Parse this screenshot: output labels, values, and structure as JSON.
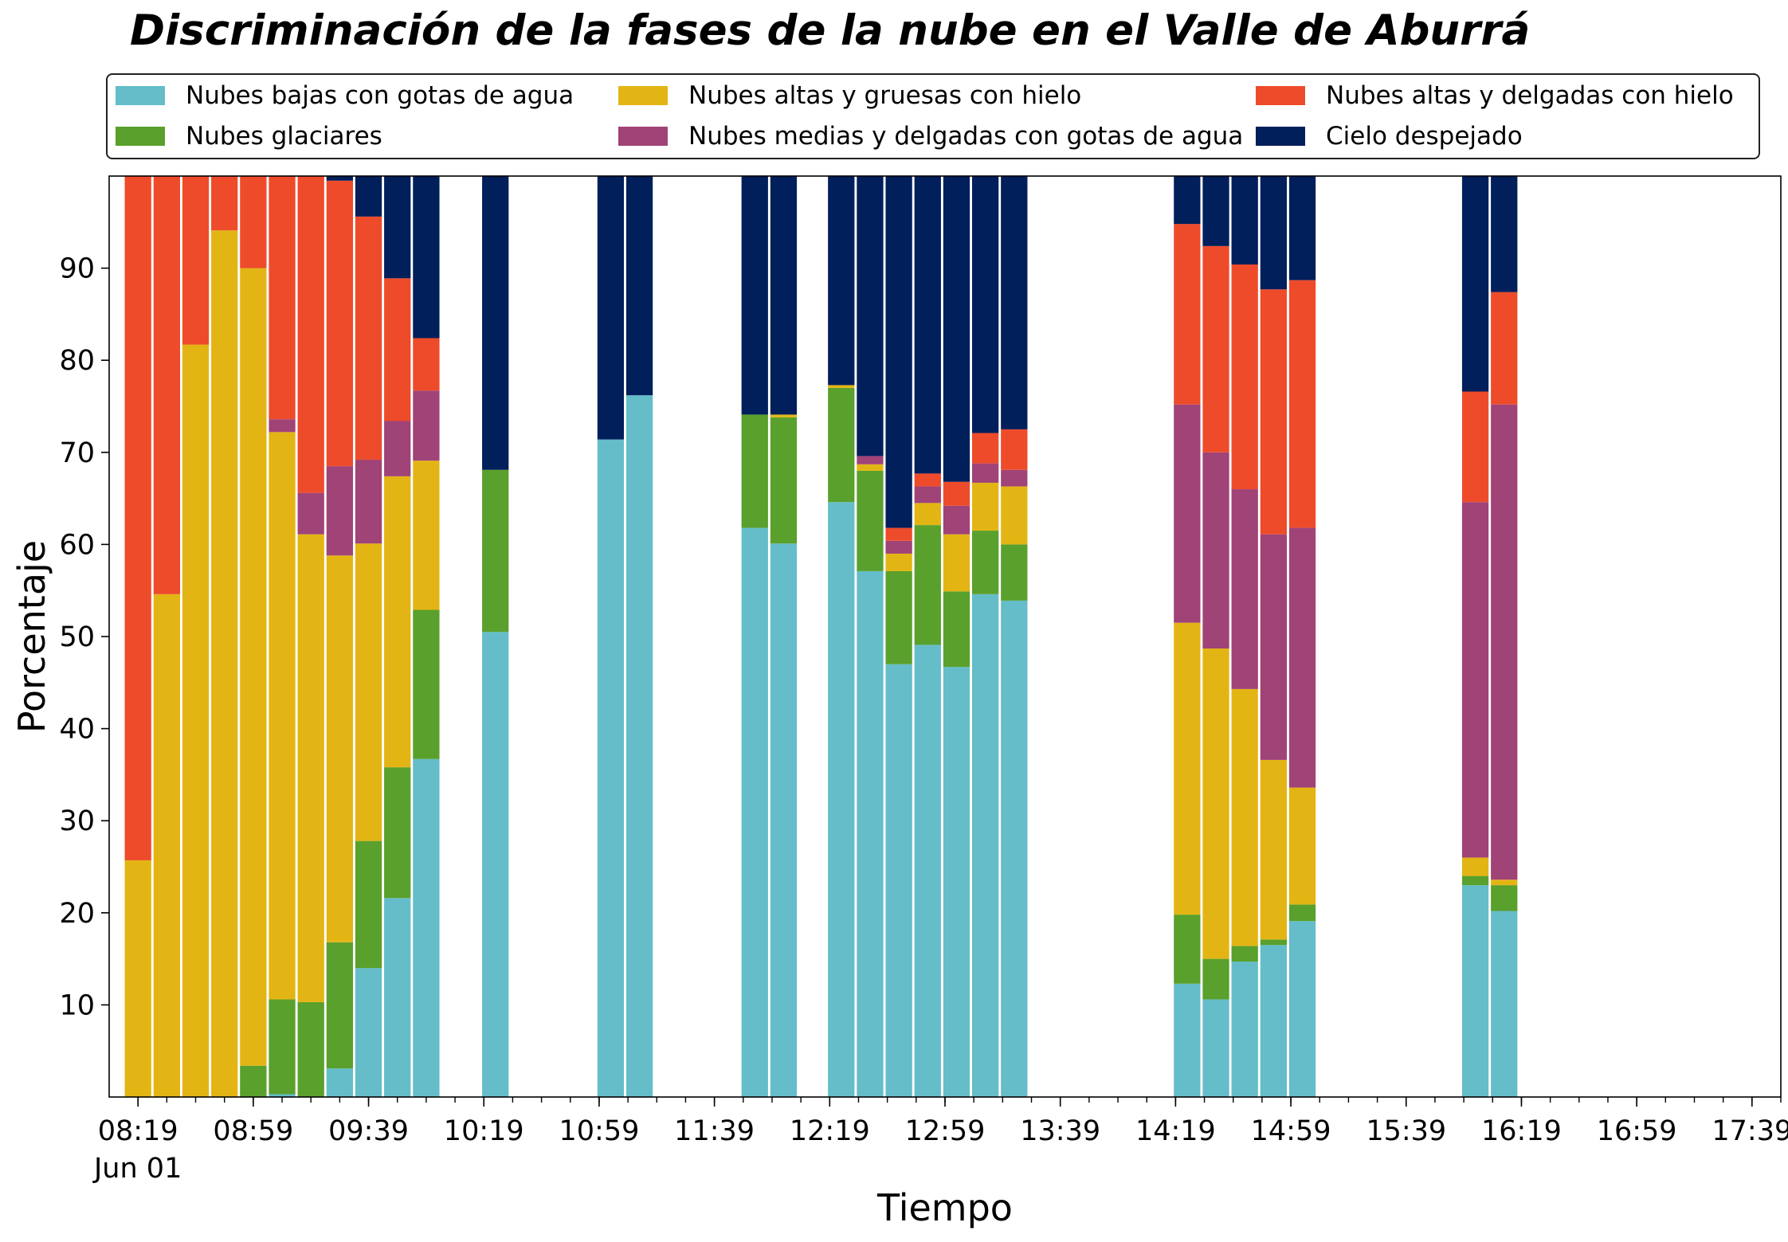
{
  "chart_data": {
    "type": "bar",
    "stacked": true,
    "title": "Discriminación de la fases de la nube en el Valle de Aburrá",
    "xlabel": "Tiempo",
    "ylabel": "Porcentaje",
    "ylim": [
      0,
      100
    ],
    "yticks": [
      10,
      20,
      30,
      40,
      50,
      60,
      70,
      80,
      90
    ],
    "xtick_labels": [
      "08:19",
      "08:59",
      "09:39",
      "10:19",
      "10:59",
      "11:39",
      "12:19",
      "12:59",
      "13:39",
      "14:19",
      "14:59",
      "15:39",
      "16:19",
      "16:59",
      "17:39"
    ],
    "xtick_date_label": "Jun 01",
    "x_start": "08:09",
    "x_end": "17:49",
    "legend_position": "top",
    "series": [
      {
        "name": "Nubes bajas con gotas de agua",
        "color": "#64BDC9"
      },
      {
        "name": "Nubes glaciares",
        "color": "#5AA02C"
      },
      {
        "name": "Nubes altas y gruesas con hielo",
        "color": "#E3B514"
      },
      {
        "name": "Nubes medias y delgadas con gotas de agua",
        "color": "#A04377"
      },
      {
        "name": "Nubes altas y delgadas con hielo",
        "color": "#EE4B2B"
      },
      {
        "name": "Cielo despejado",
        "color": "#001F5B"
      }
    ],
    "bars": [
      {
        "time": "08:19",
        "values": [
          0,
          0,
          25.7,
          0,
          74.3,
          0
        ]
      },
      {
        "time": "08:29",
        "values": [
          0,
          0,
          54.6,
          0,
          45.4,
          0
        ]
      },
      {
        "time": "08:39",
        "values": [
          0,
          0,
          81.7,
          0,
          18.3,
          0
        ]
      },
      {
        "time": "08:49",
        "values": [
          0,
          0,
          94.1,
          0,
          5.9,
          0
        ]
      },
      {
        "time": "08:59",
        "values": [
          0,
          3.4,
          86.6,
          0,
          10.0,
          0
        ]
      },
      {
        "time": "09:09",
        "values": [
          0.3,
          10.3,
          61.6,
          1.4,
          26.4,
          0
        ]
      },
      {
        "time": "09:19",
        "values": [
          0,
          10.3,
          50.8,
          4.5,
          34.4,
          0
        ]
      },
      {
        "time": "09:29",
        "values": [
          3.1,
          13.7,
          42.0,
          9.7,
          31.0,
          0.5
        ]
      },
      {
        "time": "09:39",
        "values": [
          14.0,
          13.8,
          32.3,
          9.1,
          26.4,
          4.4
        ]
      },
      {
        "time": "09:49",
        "values": [
          21.6,
          14.2,
          31.6,
          6.0,
          15.5,
          11.1
        ]
      },
      {
        "time": "09:59",
        "values": [
          36.7,
          16.2,
          16.2,
          7.6,
          5.7,
          17.6
        ]
      },
      {
        "time": "10:23",
        "values": [
          50.5,
          17.6,
          0,
          0,
          0,
          31.9
        ]
      },
      {
        "time": "11:03",
        "values": [
          71.4,
          0,
          0,
          0,
          0,
          28.6
        ]
      },
      {
        "time": "11:13",
        "values": [
          76.2,
          0,
          0,
          0,
          0,
          23.8
        ]
      },
      {
        "time": "11:53",
        "values": [
          61.8,
          12.3,
          0,
          0,
          0,
          25.9
        ]
      },
      {
        "time": "12:03",
        "values": [
          60.1,
          13.7,
          0.3,
          0,
          0,
          25.9
        ]
      },
      {
        "time": "12:23",
        "values": [
          64.6,
          12.4,
          0.3,
          0,
          0,
          22.7
        ]
      },
      {
        "time": "12:33",
        "values": [
          57.1,
          10.9,
          0.7,
          0.9,
          0,
          30.4
        ]
      },
      {
        "time": "12:43",
        "values": [
          47.0,
          10.1,
          1.9,
          1.4,
          1.4,
          38.2
        ]
      },
      {
        "time": "12:53",
        "values": [
          49.1,
          13.0,
          2.4,
          1.8,
          1.4,
          32.3
        ]
      },
      {
        "time": "13:03",
        "values": [
          46.7,
          8.2,
          6.2,
          3.1,
          2.6,
          33.2
        ]
      },
      {
        "time": "13:13",
        "values": [
          54.6,
          6.9,
          5.2,
          2.1,
          3.3,
          27.9
        ]
      },
      {
        "time": "13:23",
        "values": [
          53.9,
          6.1,
          6.3,
          1.8,
          4.4,
          27.5
        ]
      },
      {
        "time": "14:23",
        "values": [
          12.3,
          7.5,
          31.7,
          23.7,
          19.6,
          5.2
        ]
      },
      {
        "time": "14:33",
        "values": [
          10.6,
          4.4,
          33.7,
          21.3,
          22.4,
          7.6
        ]
      },
      {
        "time": "14:43",
        "values": [
          14.7,
          1.7,
          27.9,
          21.7,
          24.4,
          9.6
        ]
      },
      {
        "time": "14:53",
        "values": [
          16.5,
          0.6,
          19.5,
          24.5,
          26.6,
          12.3
        ]
      },
      {
        "time": "15:03",
        "values": [
          19.1,
          1.8,
          12.7,
          28.2,
          26.9,
          11.3
        ]
      },
      {
        "time": "16:03",
        "values": [
          23.0,
          1.0,
          2.0,
          38.6,
          12.0,
          23.4
        ]
      },
      {
        "time": "16:13",
        "values": [
          20.2,
          2.8,
          0.6,
          51.6,
          12.2,
          12.6
        ]
      }
    ]
  }
}
